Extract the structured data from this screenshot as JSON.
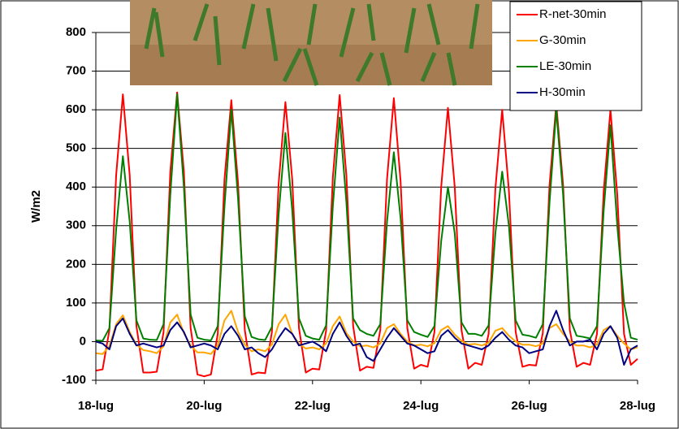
{
  "chart_data": {
    "type": "line",
    "y_label": "W/m2",
    "x": [
      18,
      18.125,
      18.25,
      18.375,
      18.5,
      18.625,
      18.75,
      18.875,
      19,
      19.125,
      19.25,
      19.375,
      19.5,
      19.625,
      19.75,
      19.875,
      20,
      20.125,
      20.25,
      20.375,
      20.5,
      20.625,
      20.75,
      20.875,
      21,
      21.125,
      21.25,
      21.375,
      21.5,
      21.625,
      21.75,
      21.875,
      22,
      22.125,
      22.25,
      22.375,
      22.5,
      22.625,
      22.75,
      22.875,
      23,
      23.125,
      23.25,
      23.375,
      23.5,
      23.625,
      23.75,
      23.875,
      24,
      24.125,
      24.25,
      24.375,
      24.5,
      24.625,
      24.75,
      24.875,
      25,
      25.125,
      25.25,
      25.375,
      25.5,
      25.625,
      25.75,
      25.875,
      26,
      26.125,
      26.25,
      26.375,
      26.5,
      26.625,
      26.75,
      26.875,
      27,
      27.125,
      27.25,
      27.375,
      27.5,
      27.625,
      27.75,
      27.875,
      28
    ],
    "xlim": [
      18,
      28
    ],
    "xticks": [
      {
        "value": 18,
        "label": "18-lug"
      },
      {
        "value": 20,
        "label": "20-lug"
      },
      {
        "value": 22,
        "label": "22-lug"
      },
      {
        "value": 24,
        "label": "24-lug"
      },
      {
        "value": 26,
        "label": "26-lug"
      },
      {
        "value": 28,
        "label": "28-lug"
      }
    ],
    "ylim": [
      -100,
      800
    ],
    "yticks": [
      -100,
      0,
      100,
      200,
      300,
      400,
      500,
      600,
      700,
      800
    ],
    "grid": true,
    "legend": "upper right",
    "series": [
      {
        "name": "R-net-30min",
        "color": "#ff0000",
        "values": [
          -75,
          -72,
          30,
          430,
          640,
          430,
          40,
          -80,
          -80,
          -78,
          25,
          440,
          645,
          440,
          35,
          -85,
          -90,
          -85,
          20,
          420,
          625,
          410,
          30,
          -85,
          -80,
          -82,
          25,
          410,
          620,
          420,
          35,
          -80,
          -70,
          -72,
          28,
          425,
          638,
          430,
          40,
          -75,
          -65,
          -68,
          30,
          420,
          630,
          415,
          35,
          -70,
          -60,
          -65,
          25,
          400,
          605,
          400,
          30,
          -70,
          -55,
          -60,
          20,
          395,
          600,
          390,
          25,
          -65,
          -60,
          -62,
          22,
          405,
          615,
          405,
          30,
          -65,
          -55,
          -60,
          20,
          390,
          600,
          380,
          20,
          -60,
          -45
        ]
      },
      {
        "name": "G-30min",
        "color": "#ffa500",
        "values": [
          -30,
          -32,
          -12,
          45,
          68,
          25,
          -8,
          -22,
          -25,
          -30,
          -12,
          50,
          70,
          22,
          -10,
          -28,
          -28,
          -32,
          -10,
          55,
          80,
          25,
          -8,
          -25,
          -20,
          -25,
          -8,
          45,
          70,
          20,
          -5,
          -18,
          -15,
          -20,
          -5,
          40,
          65,
          22,
          0,
          -12,
          -10,
          -15,
          -5,
          35,
          45,
          20,
          0,
          -10,
          -8,
          -12,
          -4,
          30,
          40,
          18,
          2,
          -8,
          -6,
          -10,
          -3,
          28,
          35,
          15,
          0,
          -8,
          -8,
          -12,
          -5,
          35,
          45,
          20,
          0,
          -10,
          -10,
          -15,
          -8,
          30,
          40,
          15,
          -5,
          -20,
          -15
        ]
      },
      {
        "name": "LE-30min",
        "color": "#008000",
        "values": [
          3,
          2,
          35,
          290,
          480,
          310,
          55,
          8,
          5,
          4,
          45,
          380,
          640,
          400,
          70,
          10,
          5,
          3,
          40,
          350,
          600,
          370,
          65,
          12,
          6,
          4,
          38,
          330,
          540,
          340,
          60,
          15,
          8,
          5,
          42,
          350,
          580,
          360,
          60,
          30,
          20,
          15,
          45,
          310,
          490,
          320,
          55,
          25,
          18,
          12,
          40,
          260,
          400,
          280,
          50,
          20,
          20,
          15,
          42,
          280,
          440,
          300,
          55,
          18,
          15,
          10,
          45,
          360,
          600,
          380,
          60,
          15,
          12,
          8,
          40,
          340,
          560,
          300,
          100,
          10,
          5
        ]
      },
      {
        "name": "H-30min",
        "color": "#000080",
        "values": [
          0,
          -5,
          -20,
          40,
          60,
          20,
          -10,
          -5,
          -10,
          -15,
          -10,
          30,
          50,
          25,
          -15,
          -10,
          -5,
          -10,
          -20,
          20,
          40,
          15,
          -20,
          -15,
          -30,
          -40,
          -20,
          10,
          35,
          20,
          -10,
          -5,
          0,
          -10,
          -25,
          20,
          50,
          15,
          -10,
          -5,
          -40,
          -50,
          -20,
          10,
          35,
          15,
          -5,
          -10,
          -20,
          -30,
          -25,
          15,
          30,
          10,
          -5,
          -10,
          -15,
          -20,
          -10,
          10,
          25,
          5,
          -10,
          -15,
          -30,
          -25,
          -20,
          40,
          80,
          30,
          -10,
          0,
          0,
          5,
          -20,
          20,
          40,
          10,
          -60,
          -20,
          -10
        ]
      }
    ]
  }
}
